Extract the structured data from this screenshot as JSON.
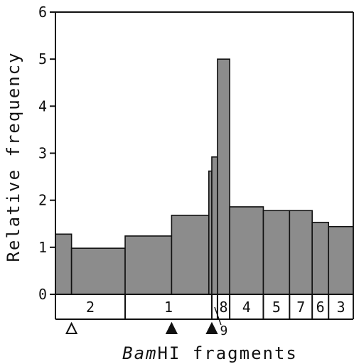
{
  "chart_data": {
    "type": "bar",
    "ylabel": "Relative frequency",
    "xlabel_italic": "Bam",
    "xlabel_rest": "HI fragments",
    "ylim": [
      0,
      6
    ],
    "yticks": [
      "0",
      "1",
      "2",
      "3",
      "4",
      "5",
      "6"
    ],
    "grid": false,
    "legend": "none",
    "bar_color": "#8c8c8c",
    "x_range": [
      0,
      100
    ],
    "bars": [
      {
        "x0": 0.0,
        "x1": 5.4,
        "value": 1.28
      },
      {
        "x0": 5.4,
        "x1": 23.4,
        "value": 0.98
      },
      {
        "x0": 23.4,
        "x1": 39.0,
        "value": 1.24
      },
      {
        "x0": 39.0,
        "x1": 51.5,
        "value": 1.68
      },
      {
        "x0": 51.5,
        "x1": 52.5,
        "value": 2.62
      },
      {
        "x0": 52.5,
        "x1": 54.4,
        "value": 2.92
      },
      {
        "x0": 54.4,
        "x1": 58.5,
        "value": 5.0
      },
      {
        "x0": 58.5,
        "x1": 69.8,
        "value": 1.86
      },
      {
        "x0": 69.8,
        "x1": 78.6,
        "value": 1.78
      },
      {
        "x0": 78.6,
        "x1": 86.2,
        "value": 1.78
      },
      {
        "x0": 86.2,
        "x1": 91.7,
        "value": 1.53
      },
      {
        "x0": 91.7,
        "x1": 100.0,
        "value": 1.44
      }
    ],
    "fragments": [
      {
        "label": "2",
        "x0": 0.0,
        "x1": 23.4
      },
      {
        "label": "1",
        "x0": 23.4,
        "x1": 52.5
      },
      {
        "label": "8",
        "x0": 54.4,
        "x1": 58.5
      },
      {
        "label": "4",
        "x0": 58.5,
        "x1": 69.8
      },
      {
        "label": "5",
        "x0": 69.8,
        "x1": 78.6
      },
      {
        "label": "7",
        "x0": 78.6,
        "x1": 86.2
      },
      {
        "label": "6",
        "x0": 86.2,
        "x1": 91.7
      },
      {
        "label": "3",
        "x0": 91.7,
        "x1": 100.0
      }
    ],
    "fragment_9": {
      "label": "9",
      "x0": 52.5,
      "x1": 54.4
    },
    "markers": [
      {
        "kind": "open",
        "x": 5.4
      },
      {
        "kind": "filled",
        "x": 39.0
      },
      {
        "kind": "filled",
        "x": 52.5
      }
    ]
  }
}
